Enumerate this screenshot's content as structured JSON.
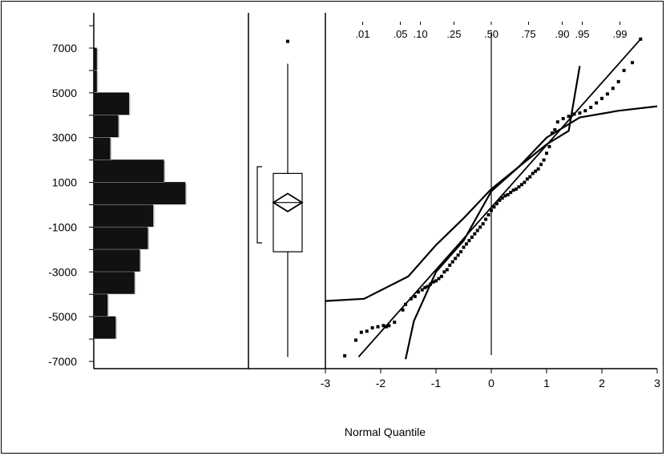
{
  "chart_data": [
    {
      "type": "histogram",
      "orientation": "horizontal",
      "ylim": [
        -7600,
        8000
      ],
      "y_ticks": [
        "7000",
        "5000",
        "3000",
        "1000",
        "-1000",
        "-3000",
        "-5000",
        "-7000"
      ],
      "y_tick_values": [
        7000,
        5000,
        3000,
        1000,
        -1000,
        -3000,
        -5000,
        -7000
      ],
      "bin_width": 1000,
      "bins": [
        {
          "lo": -7000,
          "hi": -6000,
          "count": 0
        },
        {
          "lo": -6000,
          "hi": -5000,
          "count": 8
        },
        {
          "lo": -5000,
          "hi": -4000,
          "count": 5
        },
        {
          "lo": -4000,
          "hi": -3000,
          "count": 15
        },
        {
          "lo": -3000,
          "hi": -2000,
          "count": 17
        },
        {
          "lo": -2000,
          "hi": -1000,
          "count": 20
        },
        {
          "lo": -1000,
          "hi": 0,
          "count": 22
        },
        {
          "lo": 0,
          "hi": 1000,
          "count": 34
        },
        {
          "lo": 1000,
          "hi": 2000,
          "count": 26
        },
        {
          "lo": 2000,
          "hi": 3000,
          "count": 6
        },
        {
          "lo": 3000,
          "hi": 4000,
          "count": 9
        },
        {
          "lo": 4000,
          "hi": 5000,
          "count": 13
        },
        {
          "lo": 5000,
          "hi": 6000,
          "count": 1
        },
        {
          "lo": 6000,
          "hi": 7000,
          "count": 1
        }
      ]
    },
    {
      "type": "boxplot",
      "min": -6800,
      "q1": -2100,
      "median": 100,
      "q3": 1400,
      "max": 6300,
      "outliers": [
        7300
      ],
      "mean_diamond": {
        "mean": 100,
        "lower": -300,
        "upper": 500
      },
      "shortest_half": {
        "low": -1700,
        "high": 1700
      }
    },
    {
      "type": "normal_quantile_plot",
      "xlim": [
        -3,
        3
      ],
      "x_ticks": [
        "-3",
        "-2",
        "-1",
        "0",
        "1",
        "2",
        "3"
      ],
      "x_tick_values": [
        -3,
        -2,
        -1,
        0,
        1,
        2,
        3
      ],
      "xlabel": "Normal Quantile",
      "probability_labels": [
        ".01",
        ".05",
        ".10",
        ".25",
        ".50",
        ".75",
        ".90",
        ".95",
        ".99"
      ],
      "probability_values": [
        0.01,
        0.05,
        0.1,
        0.25,
        0.5,
        0.75,
        0.9,
        0.95,
        0.99
      ],
      "fit_line": [
        [
          -2.4,
          -6800
        ],
        [
          2.7,
          7400
        ]
      ],
      "confidence_band_lower": [
        [
          -3,
          -4300
        ],
        [
          -2.3,
          -4200
        ],
        [
          -1.5,
          -3200
        ],
        [
          -1,
          -1800
        ],
        [
          -0.5,
          -600
        ],
        [
          0,
          700
        ],
        [
          0.5,
          1700
        ],
        [
          1,
          2700
        ],
        [
          1.4,
          3300
        ],
        [
          1.6,
          6200
        ]
      ],
      "confidence_band_upper": [
        [
          -1.55,
          -6900
        ],
        [
          -1.4,
          -5200
        ],
        [
          -1,
          -3000
        ],
        [
          -0.5,
          -1600
        ],
        [
          0,
          600
        ],
        [
          0.5,
          1700
        ],
        [
          1,
          3000
        ],
        [
          1.6,
          3900
        ],
        [
          2.3,
          4200
        ],
        [
          3,
          4400
        ]
      ],
      "points": [
        [
          -2.65,
          -6750
        ],
        [
          -2.45,
          -6050
        ],
        [
          -2.35,
          -5700
        ],
        [
          -2.25,
          -5650
        ],
        [
          -2.15,
          -5500
        ],
        [
          -2.05,
          -5450
        ],
        [
          -1.95,
          -5400
        ],
        [
          -1.9,
          -5450
        ],
        [
          -1.85,
          -5400
        ],
        [
          -1.75,
          -5250
        ],
        [
          -1.6,
          -4700
        ],
        [
          -1.55,
          -4450
        ],
        [
          -1.45,
          -4200
        ],
        [
          -1.38,
          -4100
        ],
        [
          -1.32,
          -3900
        ],
        [
          -1.25,
          -3800
        ],
        [
          -1.2,
          -3700
        ],
        [
          -1.15,
          -3650
        ],
        [
          -1.1,
          -3550
        ],
        [
          -1.05,
          -3450
        ],
        [
          -1.0,
          -3400
        ],
        [
          -0.95,
          -3300
        ],
        [
          -0.9,
          -3200
        ],
        [
          -0.85,
          -3000
        ],
        [
          -0.8,
          -2900
        ],
        [
          -0.75,
          -2700
        ],
        [
          -0.7,
          -2550
        ],
        [
          -0.65,
          -2400
        ],
        [
          -0.6,
          -2250
        ],
        [
          -0.55,
          -2100
        ],
        [
          -0.5,
          -1900
        ],
        [
          -0.45,
          -1750
        ],
        [
          -0.4,
          -1600
        ],
        [
          -0.35,
          -1450
        ],
        [
          -0.3,
          -1300
        ],
        [
          -0.25,
          -1150
        ],
        [
          -0.2,
          -1000
        ],
        [
          -0.15,
          -850
        ],
        [
          -0.1,
          -650
        ],
        [
          -0.05,
          -450
        ],
        [
          0.0,
          -250
        ],
        [
          0.05,
          -100
        ],
        [
          0.1,
          50
        ],
        [
          0.15,
          200
        ],
        [
          0.2,
          300
        ],
        [
          0.25,
          400
        ],
        [
          0.3,
          450
        ],
        [
          0.35,
          550
        ],
        [
          0.4,
          650
        ],
        [
          0.45,
          700
        ],
        [
          0.5,
          800
        ],
        [
          0.55,
          900
        ],
        [
          0.6,
          1000
        ],
        [
          0.65,
          1150
        ],
        [
          0.7,
          1250
        ],
        [
          0.75,
          1400
        ],
        [
          0.8,
          1500
        ],
        [
          0.85,
          1600
        ],
        [
          0.9,
          1800
        ],
        [
          0.95,
          2000
        ],
        [
          1.0,
          2300
        ],
        [
          1.05,
          2600
        ],
        [
          1.1,
          3200
        ],
        [
          1.15,
          3350
        ],
        [
          1.2,
          3700
        ],
        [
          1.3,
          3850
        ],
        [
          1.4,
          3950
        ],
        [
          1.5,
          4050
        ],
        [
          1.6,
          4100
        ],
        [
          1.7,
          4200
        ],
        [
          1.8,
          4350
        ],
        [
          1.9,
          4550
        ],
        [
          2.0,
          4750
        ],
        [
          2.1,
          4950
        ],
        [
          2.2,
          5200
        ],
        [
          2.3,
          5500
        ],
        [
          2.4,
          6000
        ],
        [
          2.55,
          6350
        ],
        [
          2.7,
          7400
        ]
      ]
    }
  ]
}
